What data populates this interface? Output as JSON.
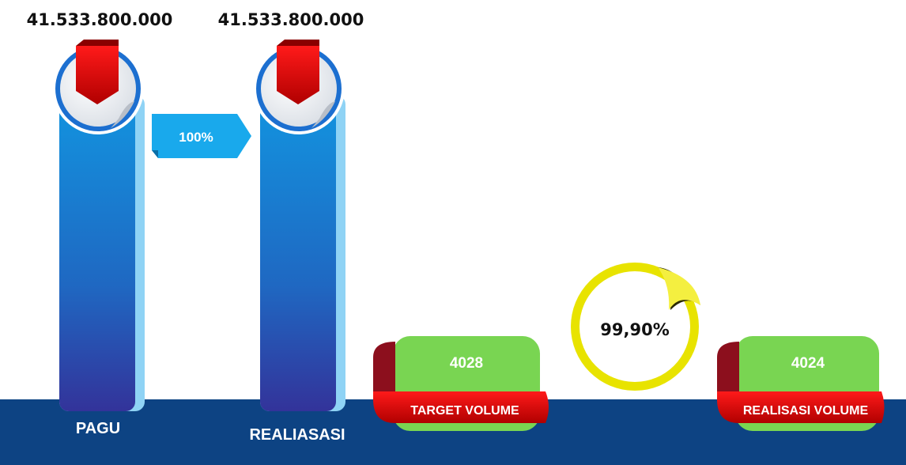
{
  "pillars": [
    {
      "value": "41.533.800.000",
      "label": "PAGU"
    },
    {
      "value": "41.533.800.000",
      "label": "REALIASASI"
    }
  ],
  "ratio": "100%",
  "volumes": [
    {
      "value": "4028",
      "label": "TARGET VOLUME"
    },
    {
      "value": "4024",
      "label": "REALISASI VOLUME"
    }
  ],
  "volume_ratio": "99,90%"
}
